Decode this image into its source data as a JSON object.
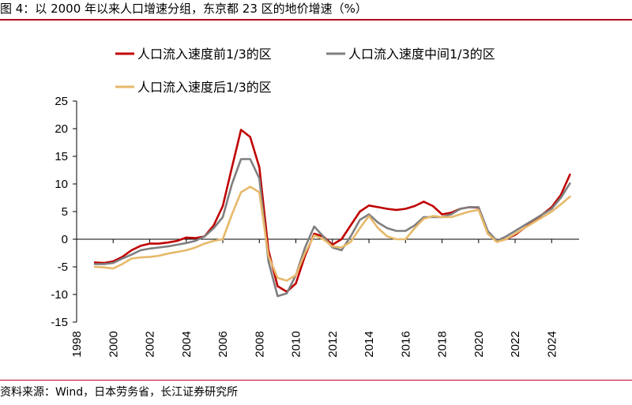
{
  "header": {
    "title": "图 4：以 2000 年以来人口增速分组，东京都 23 区的地价增速（%）"
  },
  "footer": {
    "source": "资料来源：Wind，日本劳务省，长江证券研究所"
  },
  "chart_data": {
    "type": "line",
    "title": "",
    "xlabel": "",
    "ylabel": "",
    "xlim": [
      1998,
      2025.5
    ],
    "ylim": [
      -15,
      25
    ],
    "x_ticks": [
      "1998",
      "2000",
      "2002",
      "2004",
      "2006",
      "2008",
      "2010",
      "2012",
      "2014",
      "2016",
      "2018",
      "2020",
      "2022",
      "2024"
    ],
    "y_ticks": [
      "25",
      "20",
      "15",
      "10",
      "5",
      "0",
      "-5",
      "-10",
      "-15"
    ],
    "grid": false,
    "legend_position": "top",
    "series": [
      {
        "name": "人口流入速度前1/3的区",
        "color": "#c00000",
        "x": [
          1999,
          1999.5,
          2000,
          2000.5,
          2001,
          2001.5,
          2002,
          2002.5,
          2003,
          2003.5,
          2004,
          2004.5,
          2005,
          2005.5,
          2006,
          2006.5,
          2007,
          2007.5,
          2008,
          2008.5,
          2009,
          2009.5,
          2010,
          2010.5,
          2011,
          2011.5,
          2012,
          2012.5,
          2013,
          2013.5,
          2014,
          2014.5,
          2015,
          2015.5,
          2016,
          2016.5,
          2017,
          2017.5,
          2018,
          2018.5,
          2019,
          2019.5,
          2020,
          2020.5,
          2021,
          2021.5,
          2022,
          2022.5,
          2023,
          2023.5,
          2024,
          2024.5,
          2025
        ],
        "values": [
          -4.2,
          -4.3,
          -4.0,
          -3.2,
          -2.0,
          -1.2,
          -0.8,
          -0.8,
          -0.6,
          -0.3,
          0.3,
          0.2,
          0.5,
          2.5,
          6.0,
          13.0,
          19.8,
          18.5,
          13.0,
          -2.0,
          -8.5,
          -9.5,
          -8.0,
          -3.0,
          1.0,
          0.5,
          -1.0,
          0.0,
          2.5,
          5.0,
          6.1,
          5.8,
          5.5,
          5.3,
          5.5,
          6.0,
          6.8,
          6.0,
          4.5,
          4.8,
          5.5,
          5.8,
          5.7,
          1.0,
          -0.3,
          0.0,
          0.8,
          2.0,
          3.2,
          4.5,
          5.8,
          8.0,
          11.7
        ]
      },
      {
        "name": "人口流入速度中间1/3的区",
        "color": "#7f7f7f",
        "x": [
          1999,
          1999.5,
          2000,
          2000.5,
          2001,
          2001.5,
          2002,
          2002.5,
          2003,
          2003.5,
          2004,
          2004.5,
          2005,
          2005.5,
          2006,
          2006.5,
          2007,
          2007.5,
          2008,
          2008.5,
          2009,
          2009.5,
          2010,
          2010.5,
          2011,
          2011.5,
          2012,
          2012.5,
          2013,
          2013.5,
          2014,
          2014.5,
          2015,
          2015.5,
          2016,
          2016.5,
          2017,
          2017.5,
          2018,
          2018.5,
          2019,
          2019.5,
          2020,
          2020.5,
          2021,
          2021.5,
          2022,
          2022.5,
          2023,
          2023.5,
          2024,
          2024.5,
          2025
        ],
        "values": [
          -4.5,
          -4.5,
          -4.3,
          -3.5,
          -2.8,
          -2.0,
          -1.7,
          -1.5,
          -1.3,
          -1.0,
          -0.7,
          -0.3,
          0.5,
          2.0,
          4.0,
          10.0,
          14.5,
          14.5,
          11.0,
          -4.0,
          -10.3,
          -9.8,
          -6.5,
          -1.5,
          2.3,
          0.5,
          -1.5,
          -2.0,
          0.5,
          3.5,
          4.5,
          3.0,
          2.0,
          1.5,
          1.5,
          2.5,
          4.0,
          4.0,
          4.0,
          4.5,
          5.5,
          5.8,
          5.8,
          1.5,
          -0.3,
          0.5,
          1.5,
          2.5,
          3.5,
          4.5,
          5.5,
          7.5,
          10.1
        ]
      },
      {
        "name": "人口流入速度后1/3的区",
        "color": "#e6b96a",
        "x": [
          1999,
          1999.5,
          2000,
          2000.5,
          2001,
          2001.5,
          2002,
          2002.5,
          2003,
          2003.5,
          2004,
          2004.5,
          2005,
          2005.5,
          2006,
          2006.5,
          2007,
          2007.5,
          2008,
          2008.5,
          2009,
          2009.5,
          2010,
          2010.5,
          2011,
          2011.5,
          2012,
          2012.5,
          2013,
          2013.5,
          2014,
          2014.5,
          2015,
          2015.5,
          2016,
          2016.5,
          2017,
          2017.5,
          2018,
          2018.5,
          2019,
          2019.5,
          2020,
          2020.5,
          2021,
          2021.5,
          2022,
          2022.5,
          2023,
          2023.5,
          2024,
          2024.5,
          2025
        ],
        "values": [
          -5.0,
          -5.1,
          -5.3,
          -4.5,
          -3.5,
          -3.3,
          -3.2,
          -3.0,
          -2.6,
          -2.3,
          -2.0,
          -1.5,
          -0.8,
          -0.3,
          0.0,
          4.5,
          8.5,
          9.5,
          8.5,
          -3.0,
          -7.0,
          -7.5,
          -6.5,
          -2.5,
          0.7,
          0.0,
          -1.3,
          -1.5,
          -0.5,
          2.0,
          4.2,
          2.0,
          0.5,
          0.0,
          0.0,
          2.0,
          3.7,
          4.2,
          4.0,
          4.0,
          4.5,
          5.0,
          5.3,
          1.0,
          -0.5,
          0.0,
          1.0,
          2.0,
          3.0,
          4.0,
          5.0,
          6.3,
          7.7
        ]
      }
    ]
  }
}
